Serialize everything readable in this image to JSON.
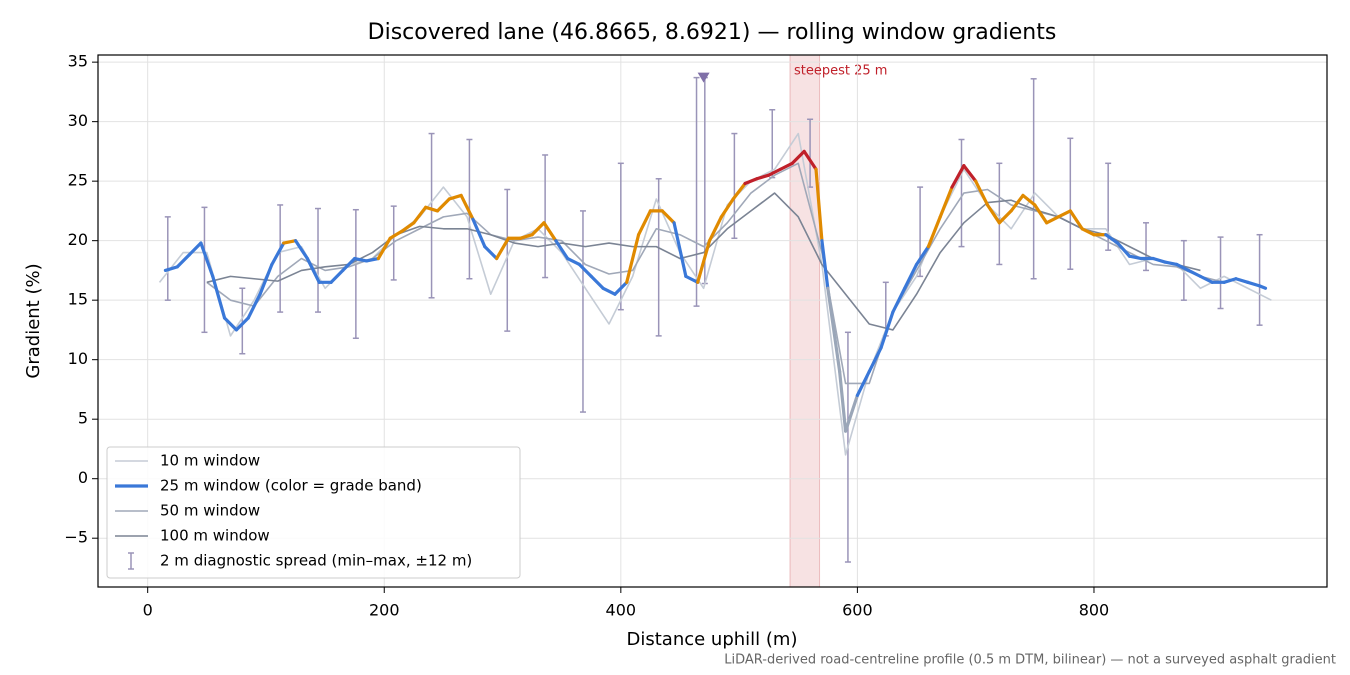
{
  "chart_data": {
    "type": "line",
    "title": "Discovered lane (46.8665, 8.6921) — rolling window gradients",
    "xlabel": "Distance uphill (m)",
    "ylabel": "Gradient (%)",
    "footnote": "LiDAR-derived road-centreline profile (0.5 m DTM, bilinear) — not a surveyed asphalt gradient",
    "xlim": [
      -42,
      997
    ],
    "ylim": [
      -9.1,
      35.6
    ],
    "xticks": [
      0,
      200,
      400,
      600,
      800
    ],
    "yticks": [
      {
        "value": -5,
        "label": "−5"
      },
      0,
      5,
      10,
      15,
      20,
      25,
      30,
      35
    ],
    "grid": true,
    "legend": "lower left",
    "series": [
      {
        "name": "10 m window",
        "color": "#c5ccd6",
        "width": 1.6,
        "x": [
          10,
          30,
          50,
          70,
          90,
          110,
          130,
          150,
          170,
          190,
          210,
          230,
          250,
          270,
          290,
          310,
          330,
          350,
          370,
          390,
          410,
          430,
          450,
          470,
          490,
          510,
          530,
          550,
          570,
          590,
          610,
          630,
          650,
          670,
          690,
          710,
          730,
          750,
          770,
          790,
          810,
          830,
          850,
          870,
          890,
          910,
          930,
          950
        ],
        "values": [
          16.5,
          19,
          19,
          12,
          15,
          19,
          19.5,
          16,
          18,
          18.5,
          20.5,
          22,
          24.5,
          22,
          15.5,
          20,
          21,
          19,
          16,
          13,
          17,
          23.5,
          19,
          16,
          23,
          25,
          26,
          29,
          18,
          2,
          9,
          14,
          17,
          22,
          26,
          23,
          21,
          24,
          22,
          21,
          21,
          18,
          18.5,
          18,
          16,
          17,
          16,
          15
        ]
      },
      {
        "name": "25 m window (color = grade band)",
        "color": "#3a78d8",
        "width": 3.2,
        "x": [
          15,
          25,
          35,
          45,
          55,
          65,
          75,
          85,
          95,
          105,
          115,
          125,
          135,
          145,
          155,
          165,
          175,
          185,
          195,
          205,
          215,
          225,
          235,
          245,
          255,
          265,
          275,
          285,
          295,
          305,
          315,
          325,
          335,
          345,
          355,
          365,
          375,
          385,
          395,
          405,
          415,
          425,
          435,
          445,
          455,
          465,
          475,
          485,
          495,
          505,
          515,
          525,
          535,
          545,
          555,
          565,
          570,
          575,
          585,
          590,
          600,
          610,
          620,
          630,
          640,
          650,
          660,
          670,
          680,
          690,
          700,
          710,
          720,
          730,
          740,
          750,
          760,
          770,
          780,
          790,
          800,
          810,
          820,
          830,
          840,
          850,
          860,
          870,
          880,
          890,
          900,
          910,
          920,
          930,
          940,
          945
        ],
        "values": [
          17.5,
          17.8,
          18.8,
          19.8,
          17,
          13.5,
          12.5,
          13.5,
          15.5,
          18,
          19.8,
          20,
          18.5,
          16.5,
          16.5,
          17.5,
          18.5,
          18.3,
          18.5,
          20.2,
          20.8,
          21.5,
          22.8,
          22.5,
          23.5,
          23.8,
          21.8,
          19.5,
          18.5,
          20.2,
          20.2,
          20.5,
          21.5,
          20,
          18.5,
          18,
          17,
          16,
          15.5,
          16.5,
          20.5,
          22.5,
          22.5,
          21.5,
          17,
          16.5,
          20,
          22,
          23.5,
          24.8,
          25.2,
          25.5,
          26,
          26.5,
          27.5,
          26,
          20,
          16,
          9,
          4,
          7,
          9,
          11,
          14,
          16,
          18,
          19.5,
          22,
          24.5,
          26.3,
          25,
          23,
          21.5,
          22.5,
          23.8,
          23,
          21.5,
          22,
          22.5,
          21,
          20.5,
          20.5,
          19.8,
          18.7,
          18.5,
          18.5,
          18.2,
          18,
          17.5,
          17,
          16.5,
          16.5,
          16.8,
          16.5,
          16.2,
          16
        ],
        "colors": [
          "#3a78d8",
          "#3a78d8",
          "#3a78d8",
          "#3a78d8",
          "#3a78d8",
          "#3a78d8",
          "#3a78d8",
          "#3a78d8",
          "#3a78d8",
          "#3a78d8",
          "#3a78d8",
          "#e08a00",
          "#3a78d8",
          "#3a78d8",
          "#3a78d8",
          "#3a78d8",
          "#3a78d8",
          "#3a78d8",
          "#3a78d8",
          "#e08a00",
          "#e08a00",
          "#e08a00",
          "#e08a00",
          "#e08a00",
          "#e08a00",
          "#e08a00",
          "#e08a00",
          "#3a78d8",
          "#3a78d8",
          "#e08a00",
          "#e08a00",
          "#e08a00",
          "#e08a00",
          "#e08a00",
          "#3a78d8",
          "#3a78d8",
          "#3a78d8",
          "#3a78d8",
          "#3a78d8",
          "#3a78d8",
          "#e08a00",
          "#e08a00",
          "#e08a00",
          "#e08a00",
          "#3a78d8",
          "#3a78d8",
          "#e08a00",
          "#e08a00",
          "#e08a00",
          "#e08a00",
          "#c0202a",
          "#c0202a",
          "#c0202a",
          "#c0202a",
          "#c0202a",
          "#c0202a",
          "#e08a00",
          "#3a78d8",
          "#9aa6b8",
          "#9aa6b8",
          "#9aa6b8",
          "#3a78d8",
          "#3a78d8",
          "#3a78d8",
          "#3a78d8",
          "#3a78d8",
          "#3a78d8",
          "#e08a00",
          "#e08a00",
          "#c0202a",
          "#c0202a",
          "#e08a00",
          "#e08a00",
          "#e08a00",
          "#e08a00",
          "#e08a00",
          "#e08a00",
          "#e08a00",
          "#e08a00",
          "#e08a00",
          "#e08a00",
          "#e08a00",
          "#3a78d8",
          "#3a78d8",
          "#3a78d8",
          "#3a78d8",
          "#3a78d8",
          "#3a78d8",
          "#3a78d8",
          "#3a78d8",
          "#3a78d8",
          "#3a78d8",
          "#3a78d8",
          "#3a78d8",
          "#3a78d8",
          "#3a78d8"
        ]
      },
      {
        "name": "50 m window",
        "color": "#a0a8b8",
        "width": 1.6,
        "x": [
          50,
          70,
          90,
          110,
          130,
          150,
          170,
          190,
          210,
          230,
          250,
          270,
          290,
          310,
          330,
          350,
          370,
          390,
          410,
          430,
          450,
          470,
          490,
          510,
          530,
          550,
          570,
          590,
          610,
          630,
          650,
          670,
          690,
          710,
          730,
          750,
          770,
          790,
          810,
          830,
          850,
          870,
          890,
          910
        ],
        "values": [
          16.5,
          15,
          14.5,
          17,
          18.5,
          17.5,
          17.8,
          18.5,
          20,
          21,
          22,
          22.3,
          20.5,
          20,
          20.3,
          20,
          18,
          17.2,
          17.5,
          21,
          20.5,
          19.5,
          21.5,
          24,
          25.5,
          26.5,
          19,
          8,
          8,
          14,
          17.5,
          21,
          24,
          24.3,
          23,
          22.5,
          22,
          21,
          20,
          19,
          18,
          17.8,
          17,
          16.5
        ]
      },
      {
        "name": "100 m window",
        "color": "#7b8494",
        "width": 1.6,
        "x": [
          50,
          70,
          90,
          110,
          130,
          150,
          170,
          190,
          210,
          230,
          250,
          270,
          290,
          310,
          330,
          350,
          370,
          390,
          410,
          430,
          450,
          470,
          490,
          510,
          530,
          550,
          570,
          590,
          610,
          630,
          650,
          670,
          690,
          710,
          730,
          750,
          770,
          790,
          810,
          830,
          850,
          870,
          890
        ],
        "values": [
          16.5,
          17,
          16.8,
          16.6,
          17.5,
          17.8,
          18,
          19,
          20.5,
          21.2,
          21,
          21,
          20.5,
          19.8,
          19.5,
          19.8,
          19.5,
          19.8,
          19.5,
          19.5,
          18.5,
          19,
          21,
          22.5,
          24,
          22,
          18,
          15.5,
          13,
          12.5,
          15.5,
          19,
          21.5,
          23.2,
          23.4,
          22.6,
          22,
          21,
          20.5,
          19.5,
          18.5,
          18,
          17.5
        ]
      }
    ],
    "errorbars": {
      "name": "2 m diagnostic spread (min–max, ±12 m)",
      "color": "#9a94b8",
      "x": [
        17,
        48,
        80,
        112,
        144,
        176,
        208,
        240,
        272,
        304,
        336,
        368,
        400,
        432,
        464,
        471,
        496,
        528,
        560,
        592,
        624,
        653,
        688,
        720,
        749,
        780,
        812,
        844,
        876,
        907,
        940
      ],
      "low": [
        15,
        12.3,
        10.5,
        14,
        14,
        11.8,
        16.7,
        15.2,
        16.8,
        12.4,
        16.9,
        5.6,
        14.2,
        12,
        14.5,
        16.4,
        20.2,
        25.3,
        24.5,
        -7,
        12,
        17,
        19.5,
        18,
        16.8,
        17.6,
        19.2,
        17.5,
        15,
        14.3,
        12.9
      ],
      "high": [
        22,
        22.8,
        16,
        23,
        22.7,
        22.6,
        22.9,
        29,
        28.5,
        24.3,
        27.2,
        22.5,
        26.5,
        25.2,
        33.7,
        33.7,
        29,
        31,
        30.2,
        12.3,
        16.5,
        24.5,
        28.5,
        26.5,
        33.6,
        28.6,
        26.5,
        21.5,
        20,
        20.3,
        20.5
      ]
    },
    "marker": {
      "x": 470,
      "y": 33.7,
      "color": "#8070a8"
    },
    "span": {
      "x0": 543,
      "x1": 568,
      "label": "steepest 25 m",
      "color": "#c0202a"
    }
  }
}
